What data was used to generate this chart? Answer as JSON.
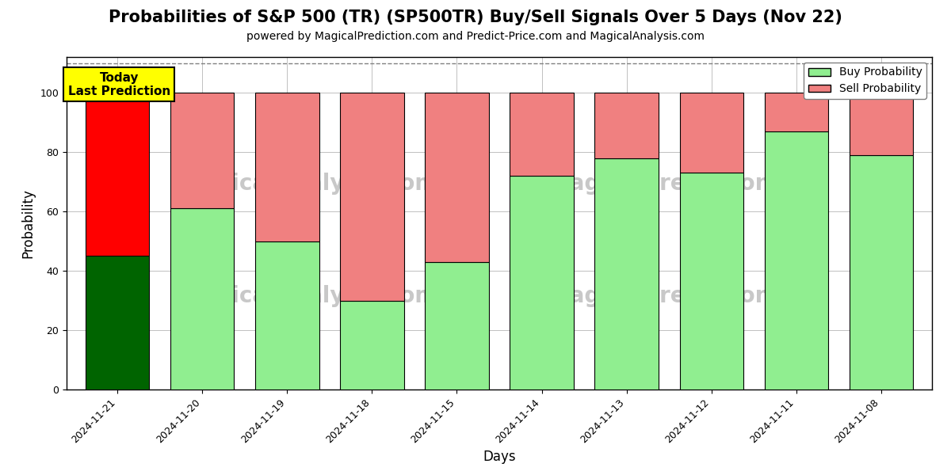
{
  "title": "Probabilities of S&P 500 (TR) (SP500TR) Buy/Sell Signals Over 5 Days (Nov 22)",
  "subtitle": "powered by MagicalPrediction.com and Predict-Price.com and MagicalAnalysis.com",
  "xlabel": "Days",
  "ylabel": "Probability",
  "dates": [
    "2024-11-21",
    "2024-11-20",
    "2024-11-19",
    "2024-11-18",
    "2024-11-15",
    "2024-11-14",
    "2024-11-13",
    "2024-11-12",
    "2024-11-11",
    "2024-11-08"
  ],
  "buy_values": [
    45,
    61,
    50,
    30,
    43,
    72,
    78,
    73,
    87,
    79
  ],
  "sell_values": [
    55,
    39,
    50,
    70,
    57,
    28,
    22,
    27,
    13,
    21
  ],
  "buy_color_today": "#006400",
  "sell_color_today": "#FF0000",
  "buy_color": "#90EE90",
  "sell_color": "#F08080",
  "bar_edgecolor": "black",
  "bar_linewidth": 0.8,
  "ylim": [
    0,
    112
  ],
  "yticks": [
    0,
    20,
    40,
    60,
    80,
    100
  ],
  "dashed_line_y": 110,
  "today_box_text": "Today\nLast Prediction",
  "today_box_color": "yellow",
  "today_box_edgecolor": "black",
  "legend_buy_label": "Buy Probability",
  "legend_sell_label": "Sell Probability",
  "watermark_color": "#c8c8c8",
  "background_color": "white",
  "grid_color": "gray",
  "title_fontsize": 15,
  "subtitle_fontsize": 10,
  "axis_label_fontsize": 12,
  "tick_fontsize": 9,
  "bar_width": 0.75
}
